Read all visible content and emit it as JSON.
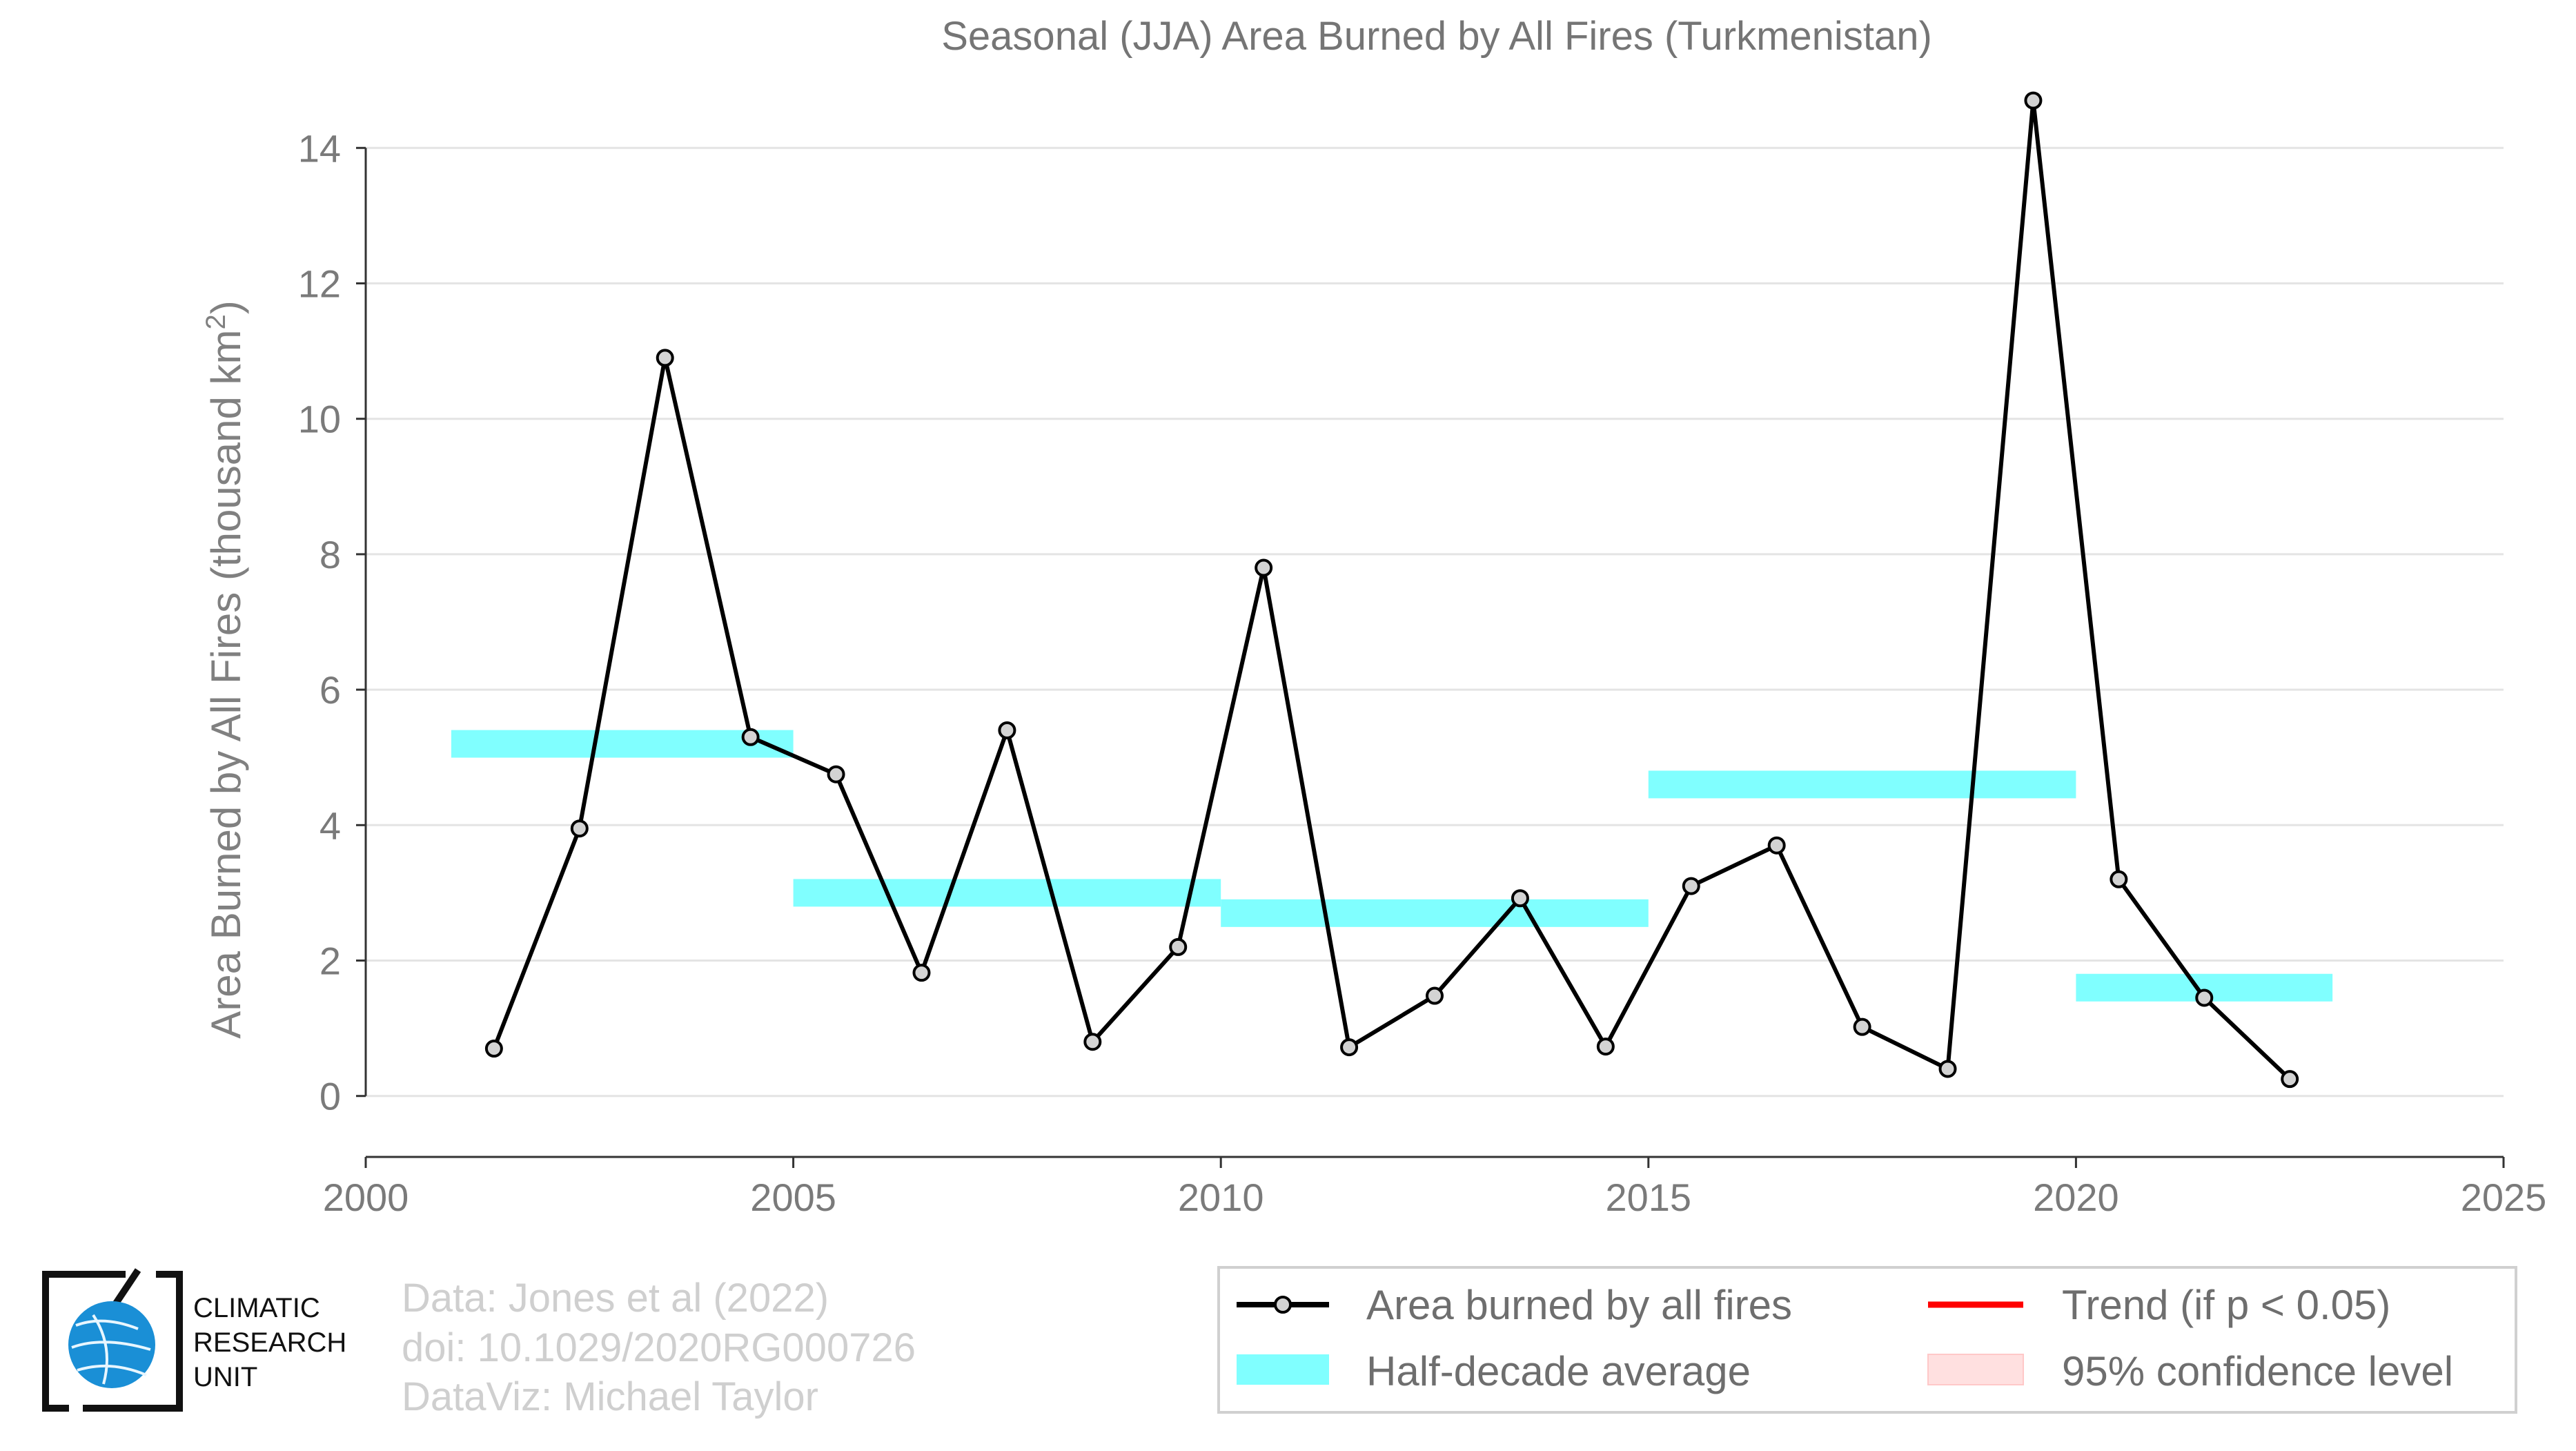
{
  "chart_data": {
    "type": "line",
    "title": "Seasonal (JJA) Area Burned by All Fires (Turkmenistan)",
    "ylabel_main": "Area Burned by All Fires (thousand km",
    "ylabel_sup": "2",
    "ylabel_close": ")",
    "xlabel": "",
    "xlim": [
      2000,
      2025
    ],
    "ylim": [
      -0.9,
      14.9
    ],
    "xticks": [
      "2000",
      "2005",
      "2010",
      "2015",
      "2020",
      "2025"
    ],
    "yticks": [
      "0",
      "2",
      "4",
      "6",
      "8",
      "10",
      "12",
      "14"
    ],
    "grid": "horizontal",
    "series": [
      {
        "name": "Area burned by all fires",
        "color": "#000000",
        "marker_fill": "#d3d3d3",
        "x": [
          2001.5,
          2002.5,
          2003.5,
          2004.5,
          2005.5,
          2006.5,
          2007.5,
          2008.5,
          2009.5,
          2010.5,
          2011.5,
          2012.5,
          2013.5,
          2014.5,
          2015.5,
          2016.5,
          2017.5,
          2018.5,
          2019.5,
          2020.5,
          2021.5,
          2022.5
        ],
        "values": [
          0.7,
          3.95,
          10.9,
          5.3,
          4.75,
          1.82,
          5.4,
          0.8,
          2.2,
          7.8,
          0.72,
          1.48,
          2.92,
          0.73,
          3.1,
          3.7,
          1.02,
          0.4,
          14.7,
          3.2,
          1.45,
          0.25
        ]
      },
      {
        "name": "Half-decade average",
        "color": "#80ffff",
        "segments": [
          {
            "x0": 2001,
            "x1": 2005,
            "value": 5.2
          },
          {
            "x0": 2005,
            "x1": 2010,
            "value": 3.0
          },
          {
            "x0": 2010,
            "x1": 2015,
            "value": 2.7
          },
          {
            "x0": 2015,
            "x1": 2020,
            "value": 4.6
          },
          {
            "x0": 2020,
            "x1": 2023,
            "value": 1.6
          }
        ]
      }
    ],
    "legend": {
      "placement": "bottom-right",
      "entries": [
        {
          "label": "Area burned by all fires",
          "kind": "line-marker",
          "color": "#000000"
        },
        {
          "label": "Trend (if p < 0.05)",
          "kind": "line",
          "color": "#ff0000"
        },
        {
          "label": "Half-decade average",
          "kind": "patch",
          "color": "#80ffff"
        },
        {
          "label": "95% confidence level",
          "kind": "patch",
          "color": "#ffe0e0"
        }
      ]
    }
  },
  "credits": {
    "line1": "Data: Jones et al (2022)",
    "line2": "doi: 10.1029/2020RG000726",
    "line3": "DataViz: Michael Taylor"
  },
  "logo": {
    "line1": "CLIMATIC",
    "line2": "RESEARCH",
    "line3": "UNIT",
    "globe_color": "#1a8fd6"
  }
}
